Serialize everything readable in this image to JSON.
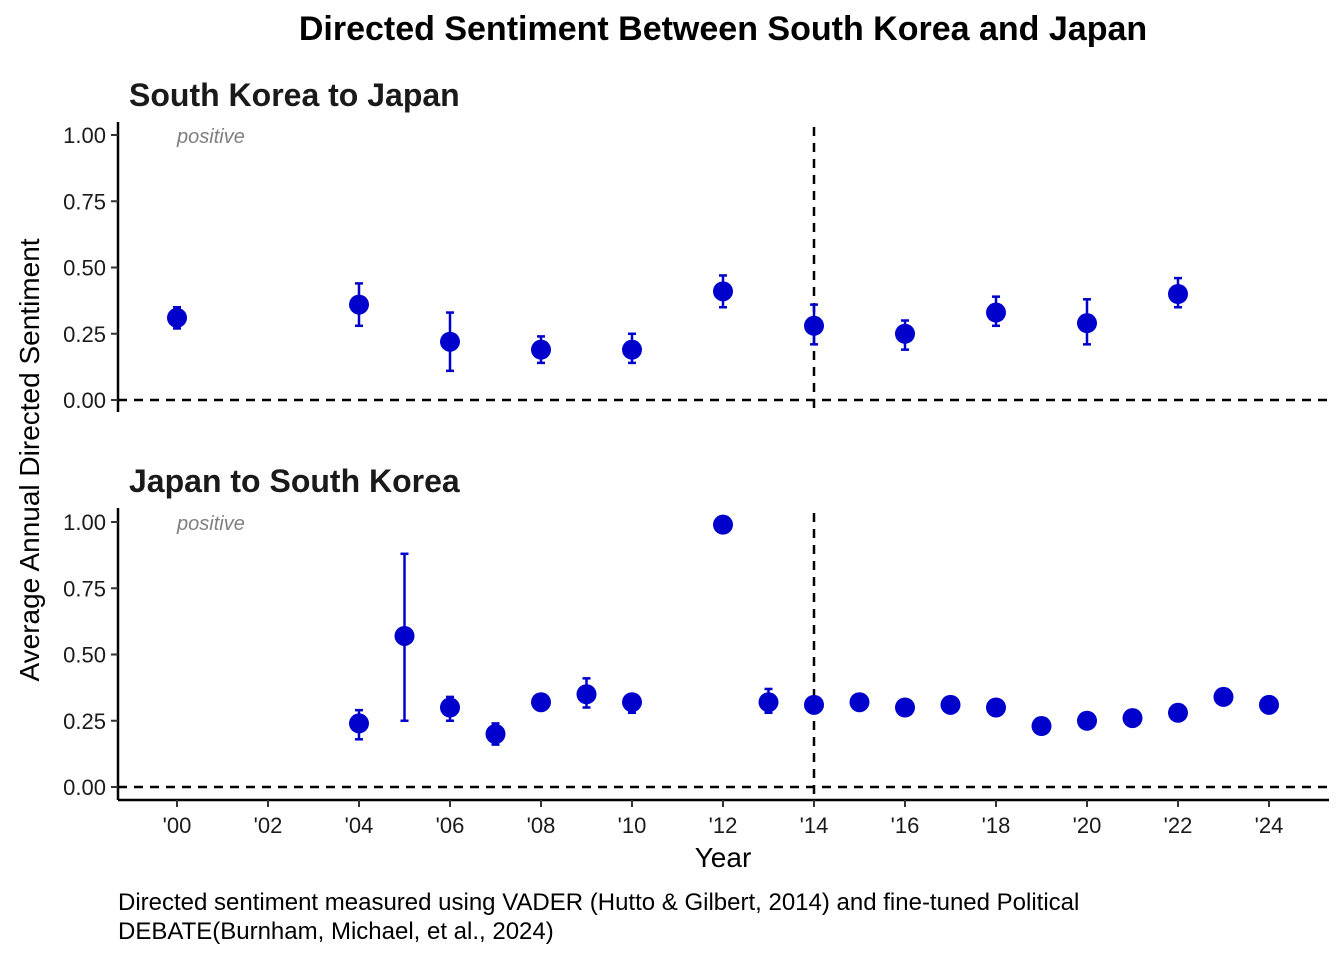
{
  "title": "Directed Sentiment Between South Korea and Japan",
  "caption_lines": [
    "Directed sentiment measured using VADER (Hutto & Gilbert, 2014) and fine-tuned Political",
    "DEBATE(Burnham, Michael, et al., 2024)"
  ],
  "ylabel": "Average Annual Directed Sentiment",
  "xlabel": "Year",
  "point_color": "#0000CD",
  "chart_data": [
    {
      "type": "scatter",
      "title": "South Korea to Japan",
      "annotation": "positive",
      "xlim": [
        2000,
        2024
      ],
      "ylim": [
        0,
        1
      ],
      "x_ticks": [
        2000,
        2002,
        2004,
        2006,
        2008,
        2010,
        2012,
        2014,
        2016,
        2018,
        2020,
        2022,
        2024
      ],
      "x_tick_labels": [
        "'00",
        "'02",
        "'04",
        "'06",
        "'08",
        "'10",
        "'12",
        "'14",
        "'16",
        "'18",
        "'20",
        "'22",
        "'24"
      ],
      "y_ticks": [
        0,
        0.25,
        0.5,
        0.75,
        1
      ],
      "y_tick_labels": [
        "0.00",
        "0.25",
        "0.50",
        "0.75",
        "1.00"
      ],
      "reference_lines": {
        "y": 0,
        "x": 2014
      },
      "points": [
        {
          "x": 2000,
          "y": 0.31,
          "lo": 0.27,
          "hi": 0.35
        },
        {
          "x": 2004,
          "y": 0.36,
          "lo": 0.28,
          "hi": 0.44
        },
        {
          "x": 2006,
          "y": 0.22,
          "lo": 0.11,
          "hi": 0.33
        },
        {
          "x": 2008,
          "y": 0.19,
          "lo": 0.14,
          "hi": 0.24
        },
        {
          "x": 2010,
          "y": 0.19,
          "lo": 0.14,
          "hi": 0.25
        },
        {
          "x": 2012,
          "y": 0.41,
          "lo": 0.35,
          "hi": 0.47
        },
        {
          "x": 2014,
          "y": 0.28,
          "lo": 0.21,
          "hi": 0.36
        },
        {
          "x": 2016,
          "y": 0.25,
          "lo": 0.19,
          "hi": 0.3
        },
        {
          "x": 2018,
          "y": 0.33,
          "lo": 0.28,
          "hi": 0.39
        },
        {
          "x": 2020,
          "y": 0.29,
          "lo": 0.21,
          "hi": 0.38
        },
        {
          "x": 2022,
          "y": 0.4,
          "lo": 0.35,
          "hi": 0.46
        }
      ]
    },
    {
      "type": "scatter",
      "title": "Japan to South Korea",
      "annotation": "positive",
      "xlim": [
        2000,
        2024
      ],
      "ylim": [
        0,
        1
      ],
      "x_ticks": [
        2000,
        2002,
        2004,
        2006,
        2008,
        2010,
        2012,
        2014,
        2016,
        2018,
        2020,
        2022,
        2024
      ],
      "x_tick_labels": [
        "'00",
        "'02",
        "'04",
        "'06",
        "'08",
        "'10",
        "'12",
        "'14",
        "'16",
        "'18",
        "'20",
        "'22",
        "'24"
      ],
      "y_ticks": [
        0,
        0.25,
        0.5,
        0.75,
        1
      ],
      "y_tick_labels": [
        "0.00",
        "0.25",
        "0.50",
        "0.75",
        "1.00"
      ],
      "reference_lines": {
        "y": 0,
        "x": 2014
      },
      "points": [
        {
          "x": 2004,
          "y": 0.24,
          "lo": 0.18,
          "hi": 0.29
        },
        {
          "x": 2005,
          "y": 0.57,
          "lo": 0.25,
          "hi": 0.88
        },
        {
          "x": 2006,
          "y": 0.3,
          "lo": 0.25,
          "hi": 0.34
        },
        {
          "x": 2007,
          "y": 0.2,
          "lo": 0.16,
          "hi": 0.24
        },
        {
          "x": 2008,
          "y": 0.32,
          "lo": 0.3,
          "hi": 0.34
        },
        {
          "x": 2009,
          "y": 0.35,
          "lo": 0.3,
          "hi": 0.41
        },
        {
          "x": 2010,
          "y": 0.32,
          "lo": 0.28,
          "hi": 0.35
        },
        {
          "x": 2012,
          "y": 0.99,
          "lo": 0.98,
          "hi": 1.0
        },
        {
          "x": 2013,
          "y": 0.32,
          "lo": 0.28,
          "hi": 0.37
        },
        {
          "x": 2014,
          "y": 0.31,
          "lo": 0.28,
          "hi": 0.34
        },
        {
          "x": 2015,
          "y": 0.32,
          "lo": 0.3,
          "hi": 0.34
        },
        {
          "x": 2016,
          "y": 0.3,
          "lo": 0.28,
          "hi": 0.32
        },
        {
          "x": 2017,
          "y": 0.31,
          "lo": 0.29,
          "hi": 0.33
        },
        {
          "x": 2018,
          "y": 0.3,
          "lo": 0.28,
          "hi": 0.32
        },
        {
          "x": 2019,
          "y": 0.23,
          "lo": 0.21,
          "hi": 0.25
        },
        {
          "x": 2020,
          "y": 0.25,
          "lo": 0.23,
          "hi": 0.27
        },
        {
          "x": 2021,
          "y": 0.26,
          "lo": 0.24,
          "hi": 0.29
        },
        {
          "x": 2022,
          "y": 0.28,
          "lo": 0.25,
          "hi": 0.31
        },
        {
          "x": 2023,
          "y": 0.34,
          "lo": 0.31,
          "hi": 0.37
        },
        {
          "x": 2024,
          "y": 0.31,
          "lo": 0.29,
          "hi": 0.33
        }
      ]
    }
  ]
}
